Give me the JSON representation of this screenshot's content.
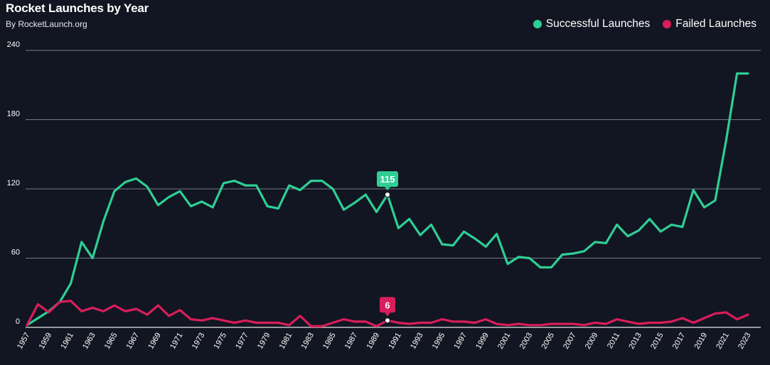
{
  "header": {
    "title": "Rocket Launches by Year",
    "subtitle": "By RocketLaunch.org"
  },
  "legend": {
    "items": [
      {
        "label": "Successful Launches",
        "color": "#2fce94"
      },
      {
        "label": "Failed Launches",
        "color": "#d81e5b"
      }
    ]
  },
  "callouts": {
    "successful": {
      "label": "115",
      "year": 1990,
      "value": 115
    },
    "failed": {
      "label": "6",
      "year": 1990,
      "value": 6
    }
  },
  "chart_data": {
    "type": "line",
    "title": "Rocket Launches by Year",
    "subtitle": "By RocketLaunch.org",
    "xlabel": "",
    "ylabel": "",
    "ylim": [
      0,
      240
    ],
    "yticks": [
      0,
      60,
      120,
      180,
      240
    ],
    "grid": true,
    "legend_position": "top-right",
    "x": [
      1957,
      1958,
      1959,
      1960,
      1961,
      1962,
      1963,
      1964,
      1965,
      1966,
      1967,
      1968,
      1969,
      1970,
      1971,
      1972,
      1973,
      1974,
      1975,
      1976,
      1977,
      1978,
      1979,
      1980,
      1981,
      1982,
      1983,
      1984,
      1985,
      1986,
      1987,
      1988,
      1989,
      1990,
      1991,
      1992,
      1993,
      1994,
      1995,
      1996,
      1997,
      1998,
      1999,
      2000,
      2001,
      2002,
      2003,
      2004,
      2005,
      2006,
      2007,
      2008,
      2009,
      2010,
      2011,
      2012,
      2013,
      2014,
      2015,
      2016,
      2017,
      2018,
      2019,
      2020,
      2021,
      2022,
      2023
    ],
    "xtick_labels": [
      "1957",
      "1959",
      "1961",
      "1963",
      "1965",
      "1967",
      "1969",
      "1971",
      "1973",
      "1975",
      "1977",
      "1979",
      "1981",
      "1983",
      "1985",
      "1987",
      "1989",
      "1991",
      "1993",
      "1995",
      "1997",
      "1999",
      "2001",
      "2003",
      "2005",
      "2007",
      "2009",
      "2011",
      "2013",
      "2015",
      "2017",
      "2019",
      "2021",
      "2023"
    ],
    "series": [
      {
        "name": "Successful Launches",
        "color": "#2fce94",
        "values": [
          2,
          8,
          14,
          22,
          38,
          74,
          60,
          92,
          118,
          126,
          129,
          122,
          106,
          113,
          118,
          105,
          109,
          104,
          125,
          127,
          123,
          123,
          105,
          103,
          123,
          119,
          127,
          127,
          120,
          102,
          108,
          115,
          100,
          115,
          86,
          94,
          80,
          89,
          72,
          71,
          83,
          77,
          70,
          81,
          55,
          61,
          60,
          52,
          52,
          63,
          64,
          66,
          74,
          73,
          89,
          79,
          84,
          94,
          83,
          89,
          87,
          119,
          104,
          110,
          162,
          220,
          220
        ],
        "display_values": [
          2,
          8,
          14,
          22,
          38,
          74,
          60,
          92,
          118,
          126,
          129,
          122,
          106,
          113,
          118,
          105,
          109,
          104,
          125,
          127,
          123,
          123,
          105,
          103,
          123,
          119,
          127,
          127,
          120,
          102,
          108,
          115,
          100,
          115,
          86,
          94,
          80,
          89,
          72,
          71,
          83,
          77,
          70,
          81,
          55,
          61,
          60,
          52,
          52,
          63,
          64,
          66,
          74,
          73,
          89,
          79,
          84,
          94,
          83,
          89,
          87,
          119,
          104,
          110,
          162,
          220,
          220
        ]
      },
      {
        "name": "Failed Launches",
        "color": "#d81e5b",
        "values": [
          2,
          20,
          13,
          22,
          23,
          14,
          17,
          14,
          19,
          14,
          16,
          11,
          19,
          10,
          15,
          7,
          6,
          8,
          6,
          4,
          6,
          4,
          4,
          4,
          2,
          10,
          1,
          1,
          4,
          7,
          5,
          5,
          1,
          6,
          4,
          3,
          4,
          4,
          7,
          5,
          5,
          4,
          7,
          3,
          2,
          3,
          2,
          2,
          3,
          3,
          3,
          2,
          4,
          3,
          7,
          5,
          3,
          4,
          4,
          5,
          8,
          4,
          8,
          12,
          13,
          7,
          11
        ]
      }
    ]
  }
}
